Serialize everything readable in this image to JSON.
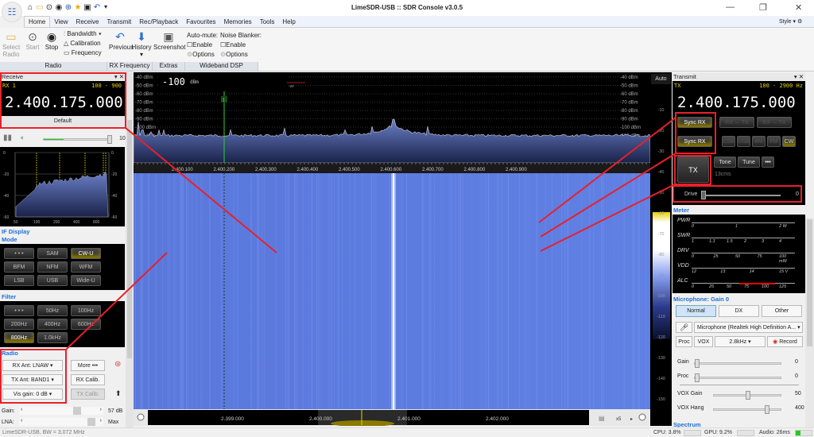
{
  "window": {
    "title": "LimeSDR-USB :: SDR Console v3.0.5",
    "minimize": "—",
    "maximize": "❐",
    "close": "✕",
    "style_label": "Style"
  },
  "quick_access": [
    "home-icon",
    "folder-icon",
    "play-icon",
    "stop-icon",
    "plus-icon",
    "star-icon",
    "camera-icon",
    "undo-icon",
    "dropdown-icon"
  ],
  "tabs": [
    "Home",
    "View",
    "Receive",
    "Transmit",
    "Rec/Playback",
    "Favourites",
    "Memories",
    "Tools",
    "Help"
  ],
  "ribbon": {
    "radio": {
      "label": "Radio",
      "select_radio": "Select Radio",
      "start": "Start",
      "stop": "Stop",
      "bandwidth": "Bandwidth",
      "calibration": "Calibration",
      "frequency": "Frequency"
    },
    "rx_frequency": {
      "label": "RX Frequency",
      "previous": "Previous",
      "history": "History"
    },
    "extras": {
      "label": "Extras",
      "screenshot": "Screenshot"
    },
    "wideband_dsp": {
      "label": "Wideband DSP",
      "auto_mute": "Auto-mute:",
      "noise_blanker": "Noise Blanker:",
      "enable": "Enable",
      "options": "Options"
    }
  },
  "receive": {
    "title": "Receive",
    "rx": "RX 1",
    "range": "100 - 900",
    "frequency": "2.400.175.000",
    "preset": "Default",
    "volume_value": "10",
    "volume_level": 0.97,
    "audio_level": 0.3,
    "mini_spectrum": {
      "y_ticks": [
        "0",
        "-20",
        "-40",
        "-60"
      ],
      "x_ticks": [
        "50",
        "100",
        "200",
        "400",
        "800"
      ]
    }
  },
  "if_display": {
    "title": "IF Display"
  },
  "mode": {
    "title": "Mode",
    "buttons": [
      "• • •",
      "SAM",
      "CW-U",
      "BFM",
      "NFM",
      "WFM",
      "LSB",
      "USB",
      "Wide-U"
    ],
    "active": "CW-U"
  },
  "filter": {
    "title": "Filter",
    "buttons": [
      "• • •",
      "50Hz",
      "100Hz",
      "200Hz",
      "400Hz",
      "600Hz",
      "800Hz",
      "1.0kHz"
    ],
    "active": "800Hz"
  },
  "radio_panel": {
    "title": "Radio",
    "rx_ant": "RX Ant: LNAW",
    "tx_ant": "TX Ant: BAND1",
    "vis_gain": "Vis gain: 0 dB",
    "more": "More •••",
    "rx_calib": "RX Calib.",
    "tx_calib": "TX Calib.",
    "gain_label": "Gain:",
    "gain_value": "57 dB",
    "lna_label": "LNA:",
    "lna_value": "Max"
  },
  "spectrum": {
    "level_readout": "-100",
    "level_unit": "dBm",
    "meter_ticks": [
      "-120",
      "-100",
      "-80",
      "-60",
      "-40",
      "-20"
    ],
    "y_ticks": [
      "-40 dBm",
      "-50 dBm",
      "-60 dBm",
      "-70 dBm",
      "-80 dBm",
      "-90 dBm",
      "-100 dBm",
      "-110 dBm",
      "-120 dBm",
      "-130 dBm"
    ],
    "x_ticks": [
      "2.400.100",
      "2.400.200",
      "2.400.300",
      "2.400.400",
      "2.400.500",
      "2.400.600",
      "2.400.700",
      "2.400.800",
      "2.400.900"
    ],
    "marker": "1"
  },
  "overview": {
    "ticks": [
      "2.399.000",
      "2.400.000",
      "2.401.000",
      "2.402.000"
    ],
    "zoom": "x5"
  },
  "colorbar": {
    "auto": "Auto",
    "ticks": [
      "-10",
      "-20",
      "-30",
      "-40",
      "-50",
      "-60",
      "-70",
      "-80",
      "-90",
      "-100",
      "-110",
      "-120",
      "-130",
      "-140",
      "-150"
    ]
  },
  "transmit": {
    "title": "Transmit",
    "tx": "TX",
    "range": "100 - 2900 Hz",
    "frequency": "2.400.175.000",
    "sync_rx": "Sync RX",
    "rx_from_tx": "RX ← TX",
    "rx_to_tx": "RX → TX",
    "modes": [
      "LSB",
      "USB",
      "AM",
      "FM",
      "CW"
    ],
    "active_mode": "CW",
    "tx_button": "TX",
    "tone": "Tone",
    "tune": "Tune",
    "more": "•••",
    "timer": "13cms",
    "drive_label": "Drive",
    "drive_value": "0"
  },
  "meter": {
    "title": "Meter",
    "rows": [
      {
        "label": "PWR",
        "ticks": [
          "0",
          "1",
          "2 W"
        ]
      },
      {
        "label": "SWR",
        "ticks": [
          "1",
          "1.1",
          "1.5",
          "2",
          "3",
          "4"
        ]
      },
      {
        "label": "DRV",
        "ticks": [
          "0",
          "25",
          "50",
          "75",
          "100 mW"
        ]
      },
      {
        "label": "VDD",
        "ticks": [
          "12",
          "13",
          "14",
          "15 V"
        ]
      },
      {
        "label": "ALC",
        "ticks": [
          "0",
          "25",
          "50",
          "75",
          "100",
          "125"
        ]
      }
    ]
  },
  "microphone": {
    "title": "Microphone: Gain 0",
    "profiles": [
      "Normal",
      "DX",
      "Other"
    ],
    "active_profile": "Normal",
    "device": "Microphone (Realtek High Definition A...",
    "proc": "Proc",
    "vox": "VOX",
    "bandwidth": "2.8kHz",
    "record": "Record",
    "sliders": [
      {
        "label": "Gain",
        "value": "0"
      },
      {
        "label": "Proc",
        "value": "0"
      },
      {
        "label": "VOX Gain",
        "value": "50"
      },
      {
        "label": "VOX Hang",
        "value": "400"
      }
    ]
  },
  "spectrum_panel": {
    "title": "Spectrum"
  },
  "status": {
    "device": "LimeSDR-USB, BW = 3.072 MHz",
    "cpu": "CPU: 3.8%",
    "gpu": "GPU: 9.2%",
    "audio": "Audio: 26ms"
  },
  "colors": {
    "annotation": "#e8202a",
    "accent": "#1e6fd9",
    "lcd_yellow": "#e8d100",
    "waterfall": "#5a78e0",
    "marker": "#2ecc40"
  }
}
